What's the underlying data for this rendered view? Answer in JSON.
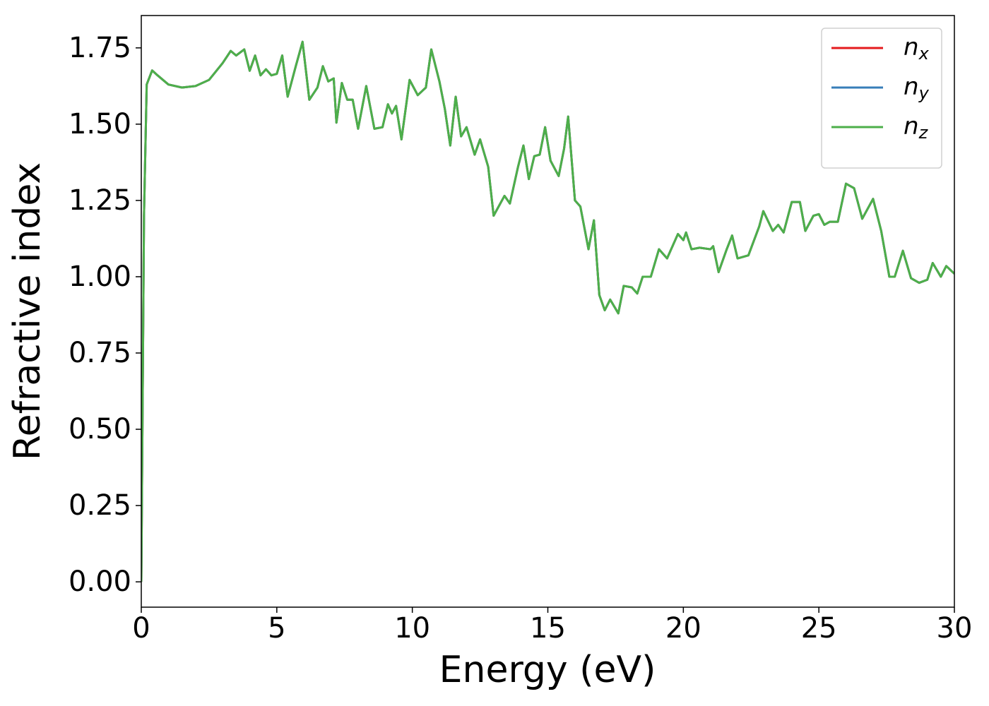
{
  "chart_data": {
    "type": "line",
    "xlabel": "Energy (eV)",
    "ylabel": "Refractive index",
    "x": [
      0,
      0.1,
      0.2,
      0.4,
      0.6,
      1.0,
      1.5,
      2.0,
      2.5,
      3.0,
      3.3,
      3.5,
      3.8,
      4.0,
      4.2,
      4.4,
      4.6,
      4.8,
      5.0,
      5.2,
      5.4,
      5.7,
      5.95,
      6.2,
      6.5,
      6.7,
      6.9,
      7.1,
      7.2,
      7.4,
      7.6,
      7.8,
      8.0,
      8.3,
      8.6,
      8.9,
      9.1,
      9.25,
      9.4,
      9.6,
      9.9,
      10.2,
      10.5,
      10.7,
      11.0,
      11.2,
      11.4,
      11.6,
      11.8,
      12.0,
      12.3,
      12.5,
      12.8,
      13.0,
      13.4,
      13.6,
      13.9,
      14.1,
      14.3,
      14.5,
      14.7,
      14.9,
      15.1,
      15.4,
      15.6,
      15.75,
      16.0,
      16.2,
      16.5,
      16.7,
      16.9,
      17.1,
      17.3,
      17.6,
      17.8,
      18.1,
      18.3,
      18.5,
      18.8,
      19.1,
      19.4,
      19.8,
      20.0,
      20.1,
      20.3,
      20.6,
      21.0,
      21.1,
      21.3,
      21.6,
      21.8,
      22.0,
      22.4,
      22.8,
      22.95,
      23.3,
      23.5,
      23.7,
      24.0,
      24.3,
      24.5,
      24.8,
      25.0,
      25.2,
      25.4,
      25.7,
      26.0,
      26.3,
      26.6,
      27.0,
      27.3,
      27.6,
      27.8,
      28.1,
      28.4,
      28.7,
      29.0,
      29.2,
      29.5,
      29.7,
      30.0
    ],
    "series": [
      {
        "name": "nx",
        "color": "#e41a1c",
        "values": [
          0,
          1.2,
          1.63,
          1.676,
          1.66,
          1.63,
          1.62,
          1.625,
          1.645,
          1.7,
          1.74,
          1.725,
          1.745,
          1.675,
          1.725,
          1.66,
          1.68,
          1.66,
          1.665,
          1.725,
          1.59,
          1.69,
          1.77,
          1.58,
          1.62,
          1.69,
          1.64,
          1.65,
          1.505,
          1.635,
          1.58,
          1.58,
          1.485,
          1.625,
          1.485,
          1.49,
          1.565,
          1.535,
          1.56,
          1.45,
          1.645,
          1.595,
          1.62,
          1.745,
          1.64,
          1.55,
          1.43,
          1.59,
          1.46,
          1.49,
          1.4,
          1.45,
          1.36,
          1.2,
          1.265,
          1.24,
          1.36,
          1.43,
          1.32,
          1.395,
          1.4,
          1.49,
          1.38,
          1.33,
          1.42,
          1.525,
          1.25,
          1.23,
          1.09,
          1.185,
          0.94,
          0.89,
          0.925,
          0.88,
          0.97,
          0.965,
          0.945,
          1.0,
          1.0,
          1.09,
          1.06,
          1.14,
          1.12,
          1.145,
          1.09,
          1.095,
          1.09,
          1.1,
          1.015,
          1.09,
          1.135,
          1.06,
          1.07,
          1.165,
          1.215,
          1.15,
          1.17,
          1.145,
          1.245,
          1.245,
          1.15,
          1.2,
          1.205,
          1.17,
          1.18,
          1.18,
          1.305,
          1.29,
          1.19,
          1.255,
          1.15,
          1.0,
          1.0,
          1.085,
          0.995,
          0.98,
          0.99,
          1.045,
          1.0,
          1.035,
          1.01
        ]
      },
      {
        "name": "ny",
        "color": "#377eb8",
        "values": [
          0,
          1.2,
          1.63,
          1.676,
          1.66,
          1.63,
          1.62,
          1.625,
          1.645,
          1.7,
          1.74,
          1.725,
          1.745,
          1.675,
          1.725,
          1.66,
          1.68,
          1.66,
          1.665,
          1.725,
          1.59,
          1.69,
          1.77,
          1.58,
          1.62,
          1.69,
          1.64,
          1.65,
          1.505,
          1.635,
          1.58,
          1.58,
          1.485,
          1.625,
          1.485,
          1.49,
          1.565,
          1.535,
          1.56,
          1.45,
          1.645,
          1.595,
          1.62,
          1.745,
          1.64,
          1.55,
          1.43,
          1.59,
          1.46,
          1.49,
          1.4,
          1.45,
          1.36,
          1.2,
          1.265,
          1.24,
          1.36,
          1.43,
          1.32,
          1.395,
          1.4,
          1.49,
          1.38,
          1.33,
          1.42,
          1.525,
          1.25,
          1.23,
          1.09,
          1.185,
          0.94,
          0.89,
          0.925,
          0.88,
          0.97,
          0.965,
          0.945,
          1.0,
          1.0,
          1.09,
          1.06,
          1.14,
          1.12,
          1.145,
          1.09,
          1.095,
          1.09,
          1.1,
          1.015,
          1.09,
          1.135,
          1.06,
          1.07,
          1.165,
          1.215,
          1.15,
          1.17,
          1.145,
          1.245,
          1.245,
          1.15,
          1.2,
          1.205,
          1.17,
          1.18,
          1.18,
          1.305,
          1.29,
          1.19,
          1.255,
          1.15,
          1.0,
          1.0,
          1.085,
          0.995,
          0.98,
          0.99,
          1.045,
          1.0,
          1.035,
          1.01
        ]
      },
      {
        "name": "nz",
        "color": "#4daf4a",
        "values": [
          0,
          1.2,
          1.63,
          1.676,
          1.66,
          1.63,
          1.62,
          1.625,
          1.645,
          1.7,
          1.74,
          1.725,
          1.745,
          1.675,
          1.725,
          1.66,
          1.68,
          1.66,
          1.665,
          1.725,
          1.59,
          1.69,
          1.77,
          1.58,
          1.62,
          1.69,
          1.64,
          1.65,
          1.505,
          1.635,
          1.58,
          1.58,
          1.485,
          1.625,
          1.485,
          1.49,
          1.565,
          1.535,
          1.56,
          1.45,
          1.645,
          1.595,
          1.62,
          1.745,
          1.64,
          1.55,
          1.43,
          1.59,
          1.46,
          1.49,
          1.4,
          1.45,
          1.36,
          1.2,
          1.265,
          1.24,
          1.36,
          1.43,
          1.32,
          1.395,
          1.4,
          1.49,
          1.38,
          1.33,
          1.42,
          1.525,
          1.25,
          1.23,
          1.09,
          1.185,
          0.94,
          0.89,
          0.925,
          0.88,
          0.97,
          0.965,
          0.945,
          1.0,
          1.0,
          1.09,
          1.06,
          1.14,
          1.12,
          1.145,
          1.09,
          1.095,
          1.09,
          1.1,
          1.015,
          1.09,
          1.135,
          1.06,
          1.07,
          1.165,
          1.215,
          1.15,
          1.17,
          1.145,
          1.245,
          1.245,
          1.15,
          1.2,
          1.205,
          1.17,
          1.18,
          1.18,
          1.305,
          1.29,
          1.19,
          1.255,
          1.15,
          1.0,
          1.0,
          1.085,
          0.995,
          0.98,
          0.99,
          1.045,
          1.0,
          1.035,
          1.01
        ]
      }
    ],
    "xlim": [
      0,
      30
    ],
    "xticks": [
      0,
      5,
      10,
      15,
      20,
      25,
      30
    ],
    "ylim": [
      -0.083,
      1.856
    ],
    "yticks": [
      {
        "value": 0,
        "label": "0.00"
      },
      {
        "value": 0.25,
        "label": "0.25"
      },
      {
        "value": 0.5,
        "label": "0.50"
      },
      {
        "value": 0.75,
        "label": "0.75"
      },
      {
        "value": 1.0,
        "label": "1.00"
      },
      {
        "value": 1.25,
        "label": "1.25"
      },
      {
        "value": 1.5,
        "label": "1.50"
      },
      {
        "value": 1.75,
        "label": "1.75"
      }
    ],
    "legend": "upper right",
    "grid": false
  }
}
